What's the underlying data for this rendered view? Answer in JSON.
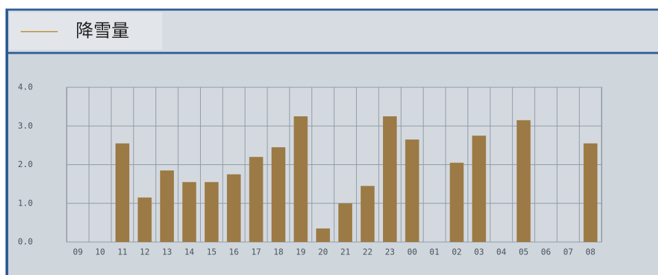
{
  "chart_data": {
    "type": "bar",
    "categories": [
      "09",
      "10",
      "11",
      "12",
      "13",
      "14",
      "15",
      "16",
      "17",
      "18",
      "19",
      "20",
      "21",
      "22",
      "23",
      "00",
      "01",
      "02",
      "03",
      "04",
      "05",
      "06",
      "07",
      "08"
    ],
    "series": [
      {
        "name": "降雪量",
        "color": "#9c7a45",
        "legend_color": "#c8a060",
        "values": [
          0,
          0,
          2.55,
          1.15,
          1.85,
          1.55,
          1.55,
          1.75,
          2.2,
          2.45,
          3.25,
          0.35,
          1.0,
          1.45,
          3.25,
          2.65,
          0,
          2.05,
          2.75,
          0,
          3.15,
          0,
          0,
          2.55
        ]
      }
    ],
    "ylim": [
      0,
      4
    ],
    "yticks": [
      {
        "value": 0,
        "label": "0.0"
      },
      {
        "value": 1,
        "label": "1.0"
      },
      {
        "value": 2,
        "label": "2.0"
      },
      {
        "value": 3,
        "label": "3.0"
      },
      {
        "value": 4,
        "label": "4.0"
      }
    ],
    "grid": true
  }
}
